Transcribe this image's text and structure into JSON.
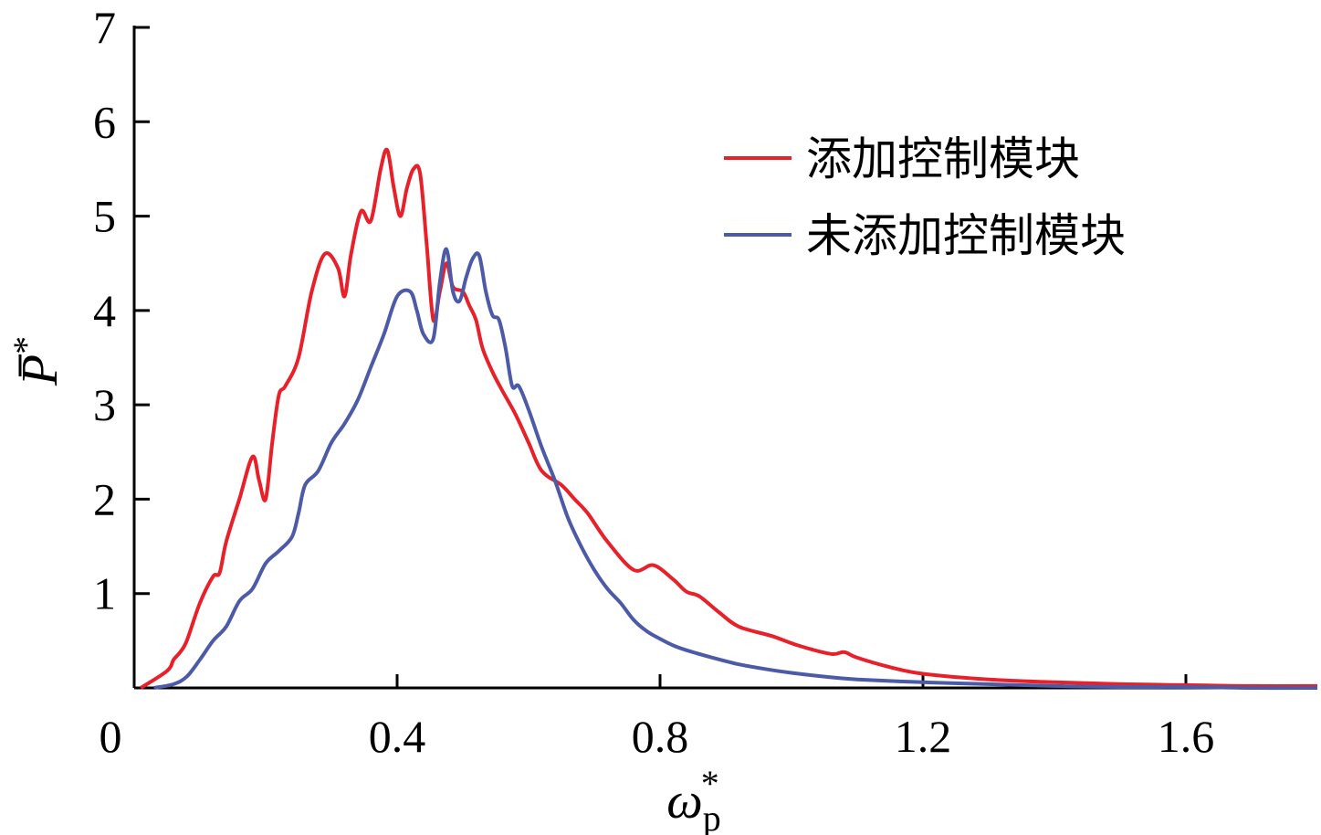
{
  "chart_data": {
    "type": "line",
    "xlabel": "ω",
    "xlabel_sub": "p",
    "xlabel_sup": "*",
    "ylabel": "P",
    "ylabel_sup": "*",
    "xlim": [
      0,
      1.8
    ],
    "ylim": [
      0,
      7
    ],
    "xticks": [
      0,
      0.4,
      0.8,
      1.2,
      1.6
    ],
    "xtick_labels": [
      "0",
      "0.4",
      "0.8",
      "1.2",
      "1.6"
    ],
    "yticks": [
      1,
      2,
      3,
      4,
      5,
      6,
      7
    ],
    "ytick_labels": [
      "1",
      "2",
      "3",
      "4",
      "5",
      "6",
      "7"
    ],
    "grid": false,
    "legend_position": "top-right",
    "series": [
      {
        "name": "添加控制模块",
        "color": "#e8202a",
        "x": [
          0.01,
          0.05,
          0.06,
          0.07,
          0.08,
          0.1,
          0.12,
          0.13,
          0.14,
          0.16,
          0.18,
          0.19,
          0.2,
          0.21,
          0.22,
          0.23,
          0.25,
          0.27,
          0.29,
          0.31,
          0.32,
          0.33,
          0.345,
          0.36,
          0.375,
          0.385,
          0.395,
          0.405,
          0.415,
          0.425,
          0.435,
          0.445,
          0.455,
          0.465,
          0.475,
          0.485,
          0.5,
          0.51,
          0.52,
          0.53,
          0.545,
          0.56,
          0.58,
          0.6,
          0.62,
          0.65,
          0.67,
          0.69,
          0.72,
          0.76,
          0.79,
          0.82,
          0.84,
          0.86,
          0.89,
          0.92,
          0.97,
          1.01,
          1.06,
          1.08,
          1.1,
          1.15,
          1.2,
          1.3,
          1.4,
          1.5,
          1.6,
          1.7,
          1.8
        ],
        "y": [
          0.0,
          0.18,
          0.3,
          0.38,
          0.5,
          0.9,
          1.18,
          1.22,
          1.55,
          2.0,
          2.45,
          2.2,
          2.0,
          2.6,
          3.1,
          3.2,
          3.5,
          4.2,
          4.6,
          4.45,
          4.15,
          4.6,
          5.05,
          4.95,
          5.5,
          5.7,
          5.3,
          5.0,
          5.3,
          5.5,
          5.45,
          4.7,
          3.9,
          4.2,
          4.5,
          4.25,
          4.2,
          4.05,
          3.9,
          3.6,
          3.35,
          3.15,
          2.9,
          2.6,
          2.3,
          2.15,
          2.0,
          1.85,
          1.55,
          1.25,
          1.3,
          1.15,
          1.02,
          0.97,
          0.8,
          0.65,
          0.55,
          0.45,
          0.36,
          0.38,
          0.32,
          0.22,
          0.15,
          0.09,
          0.06,
          0.04,
          0.03,
          0.02,
          0.02
        ]
      },
      {
        "name": "未添加控制模块",
        "color": "#4c5aa8",
        "x": [
          0.03,
          0.06,
          0.08,
          0.1,
          0.12,
          0.14,
          0.16,
          0.18,
          0.2,
          0.22,
          0.24,
          0.25,
          0.26,
          0.28,
          0.3,
          0.32,
          0.34,
          0.36,
          0.38,
          0.4,
          0.42,
          0.43,
          0.44,
          0.455,
          0.465,
          0.475,
          0.485,
          0.495,
          0.505,
          0.515,
          0.525,
          0.535,
          0.545,
          0.555,
          0.565,
          0.575,
          0.585,
          0.6,
          0.62,
          0.64,
          0.66,
          0.68,
          0.7,
          0.72,
          0.74,
          0.76,
          0.78,
          0.8,
          0.82,
          0.84,
          0.88,
          0.92,
          0.96,
          1.0,
          1.05,
          1.1,
          1.2,
          1.3,
          1.4,
          1.5,
          1.6,
          1.7,
          1.8
        ],
        "y": [
          0.0,
          0.04,
          0.12,
          0.3,
          0.5,
          0.65,
          0.92,
          1.05,
          1.32,
          1.45,
          1.6,
          1.85,
          2.15,
          2.3,
          2.6,
          2.8,
          3.05,
          3.4,
          3.75,
          4.15,
          4.2,
          4.0,
          3.75,
          3.7,
          4.3,
          4.65,
          4.2,
          4.1,
          4.35,
          4.55,
          4.58,
          4.2,
          3.95,
          3.9,
          3.6,
          3.2,
          3.2,
          2.95,
          2.55,
          2.2,
          1.8,
          1.5,
          1.25,
          1.05,
          0.9,
          0.72,
          0.6,
          0.52,
          0.45,
          0.4,
          0.32,
          0.25,
          0.2,
          0.16,
          0.12,
          0.09,
          0.06,
          0.04,
          0.02,
          0.01,
          0.01,
          0.0,
          0.0
        ]
      }
    ]
  }
}
